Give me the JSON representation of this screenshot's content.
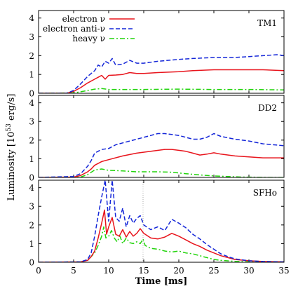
{
  "colors": {
    "electron": "#e8141c",
    "anti": "#1426d8",
    "heavy": "#22d40c",
    "axis": "#000000",
    "marker": "#999999"
  },
  "chart_data": {
    "type": "line",
    "xlabel": "Time [ms]",
    "ylabel": "Luminosity [10",
    "ylabel_exp": "53",
    "ylabel_unit": " erg/s]",
    "xlim": [
      0,
      35
    ],
    "ylim": [
      0,
      4.4
    ],
    "xticks": [
      "0",
      "5",
      "10",
      "15",
      "20",
      "25",
      "30",
      "35"
    ],
    "yticks": [
      "0",
      "1",
      "2",
      "3",
      "4"
    ],
    "legend": {
      "placement": "top-left",
      "entries": [
        {
          "key": "electron",
          "label": "electron ν",
          "dash": "solid"
        },
        {
          "key": "anti",
          "label": "electron anti-ν",
          "dash": "dashed"
        },
        {
          "key": "heavy",
          "label": "heavy ν",
          "dash": "dashdot"
        }
      ]
    },
    "panels": [
      {
        "label": "TM1",
        "marker_x": null,
        "series": [
          {
            "key": "electron",
            "x": [
              0,
              4,
              5,
              6,
              7,
              8,
              8.5,
              9,
              9.5,
              10,
              11,
              12,
              13,
              14,
              15,
              17,
              20,
              22,
              25,
              28,
              30,
              32,
              35
            ],
            "y": [
              0,
              0,
              0.1,
              0.3,
              0.55,
              0.75,
              0.85,
              0.95,
              0.75,
              0.95,
              0.97,
              1.0,
              1.1,
              1.05,
              1.05,
              1.1,
              1.15,
              1.2,
              1.25,
              1.25,
              1.25,
              1.25,
              1.2
            ]
          },
          {
            "key": "anti",
            "x": [
              0,
              4,
              5,
              6,
              7,
              8,
              8.5,
              9,
              9.5,
              10,
              10.5,
              11,
              12,
              13,
              14,
              15,
              17,
              20,
              22,
              25,
              28,
              30,
              32,
              34,
              35
            ],
            "y": [
              0,
              0,
              0.15,
              0.5,
              0.9,
              1.2,
              1.5,
              1.4,
              1.7,
              1.6,
              1.85,
              1.5,
              1.55,
              1.75,
              1.6,
              1.6,
              1.7,
              1.8,
              1.85,
              1.9,
              1.9,
              1.95,
              2.0,
              2.05,
              2.0
            ]
          },
          {
            "key": "heavy",
            "x": [
              0,
              5,
              6,
              7,
              8,
              9,
              10,
              12,
              15,
              20,
              25,
              30,
              35
            ],
            "y": [
              0,
              0.02,
              0.08,
              0.15,
              0.22,
              0.25,
              0.2,
              0.2,
              0.2,
              0.22,
              0.2,
              0.2,
              0.18
            ]
          }
        ]
      },
      {
        "label": "DD2",
        "marker_x": null,
        "series": [
          {
            "key": "electron",
            "x": [
              0,
              5,
              6,
              7,
              7.5,
              8,
              9,
              10,
              12,
              14,
              16,
              18,
              19,
              20,
              21,
              22,
              23,
              24,
              25,
              26,
              28,
              30,
              32,
              35
            ],
            "y": [
              0,
              0.02,
              0.1,
              0.3,
              0.45,
              0.65,
              0.85,
              0.95,
              1.15,
              1.3,
              1.4,
              1.5,
              1.5,
              1.45,
              1.4,
              1.3,
              1.2,
              1.25,
              1.32,
              1.25,
              1.15,
              1.1,
              1.05,
              1.05
            ]
          },
          {
            "key": "anti",
            "x": [
              0,
              5,
              6,
              7,
              7.5,
              8,
              9,
              10,
              11,
              12,
              14,
              16,
              17,
              18,
              19,
              20,
              21,
              22,
              23,
              24,
              25,
              26,
              28,
              30,
              32,
              35
            ],
            "y": [
              0,
              0.05,
              0.2,
              0.6,
              0.9,
              1.3,
              1.5,
              1.55,
              1.75,
              1.85,
              2.05,
              2.25,
              2.35,
              2.35,
              2.3,
              2.25,
              2.15,
              2.05,
              2.05,
              2.15,
              2.35,
              2.2,
              2.05,
              1.95,
              1.8,
              1.7
            ]
          },
          {
            "key": "heavy",
            "x": [
              0,
              6,
              7,
              8,
              9,
              10,
              12,
              14,
              15,
              17,
              19,
              21,
              23,
              25,
              27,
              29,
              31,
              33,
              35
            ],
            "y": [
              0,
              0.02,
              0.15,
              0.4,
              0.45,
              0.38,
              0.35,
              0.3,
              0.3,
              0.3,
              0.28,
              0.2,
              0.13,
              0.08,
              0.05,
              0.02,
              0.01,
              0,
              0
            ]
          }
        ]
      },
      {
        "label": "SFHo",
        "marker_x": 14.9,
        "series": [
          {
            "key": "electron",
            "x": [
              0,
              6,
              7,
              7.5,
              8,
              8.5,
              9,
              9.4,
              9.7,
              10,
              10.5,
              11,
              11.5,
              12,
              12.5,
              13,
              13.5,
              14,
              14.5,
              15,
              16,
              17,
              18,
              19,
              20,
              21,
              22,
              23,
              24,
              25,
              26,
              27,
              28,
              30,
              32,
              35
            ],
            "y": [
              0,
              0.02,
              0.1,
              0.3,
              0.6,
              1.3,
              2.1,
              2.8,
              1.5,
              1.9,
              2.4,
              1.5,
              1.4,
              1.75,
              1.35,
              1.65,
              1.4,
              1.55,
              1.8,
              1.55,
              1.3,
              1.25,
              1.35,
              1.55,
              1.4,
              1.2,
              1.0,
              0.85,
              0.65,
              0.5,
              0.35,
              0.25,
              0.15,
              0.08,
              0.04,
              0.02
            ]
          },
          {
            "key": "anti",
            "x": [
              0,
              6,
              7,
              7.5,
              8,
              8.5,
              9,
              9.5,
              10,
              10.5,
              11,
              11.5,
              12,
              12.5,
              13,
              13.5,
              14,
              14.5,
              15,
              16,
              17,
              18,
              19,
              20,
              21,
              22,
              23,
              24,
              25,
              26,
              27,
              28,
              30,
              32,
              35
            ],
            "y": [
              0,
              0.02,
              0.15,
              0.5,
              1.4,
              2.5,
              3.5,
              4.4,
              2.2,
              4.4,
              2.4,
              2.2,
              2.9,
              1.9,
              2.5,
              2.1,
              2.35,
              2.5,
              2.0,
              1.75,
              1.9,
              1.7,
              2.3,
              2.1,
              1.85,
              1.5,
              1.25,
              0.95,
              0.7,
              0.45,
              0.3,
              0.18,
              0.08,
              0.04,
              0.02
            ]
          },
          {
            "key": "heavy",
            "x": [
              0,
              6,
              7,
              7.5,
              8,
              8.5,
              9,
              9.3,
              9.6,
              10,
              10.4,
              10.8,
              11.2,
              11.6,
              12,
              12.5,
              13,
              13.5,
              14,
              14.5,
              14.9,
              15.2,
              16,
              17,
              18,
              19,
              20,
              21,
              22,
              23,
              24,
              25,
              26,
              28,
              30,
              35
            ],
            "y": [
              0,
              0.02,
              0.1,
              0.3,
              0.5,
              0.9,
              1.4,
              1.9,
              1.3,
              1.4,
              1.7,
              1.3,
              1.1,
              1.4,
              1.0,
              1.3,
              1.05,
              1.0,
              1.1,
              1.0,
              1.25,
              0.9,
              0.75,
              0.7,
              0.6,
              0.55,
              0.6,
              0.5,
              0.45,
              0.35,
              0.25,
              0.15,
              0.1,
              0.05,
              0.02,
              0
            ]
          }
        ]
      }
    ]
  }
}
